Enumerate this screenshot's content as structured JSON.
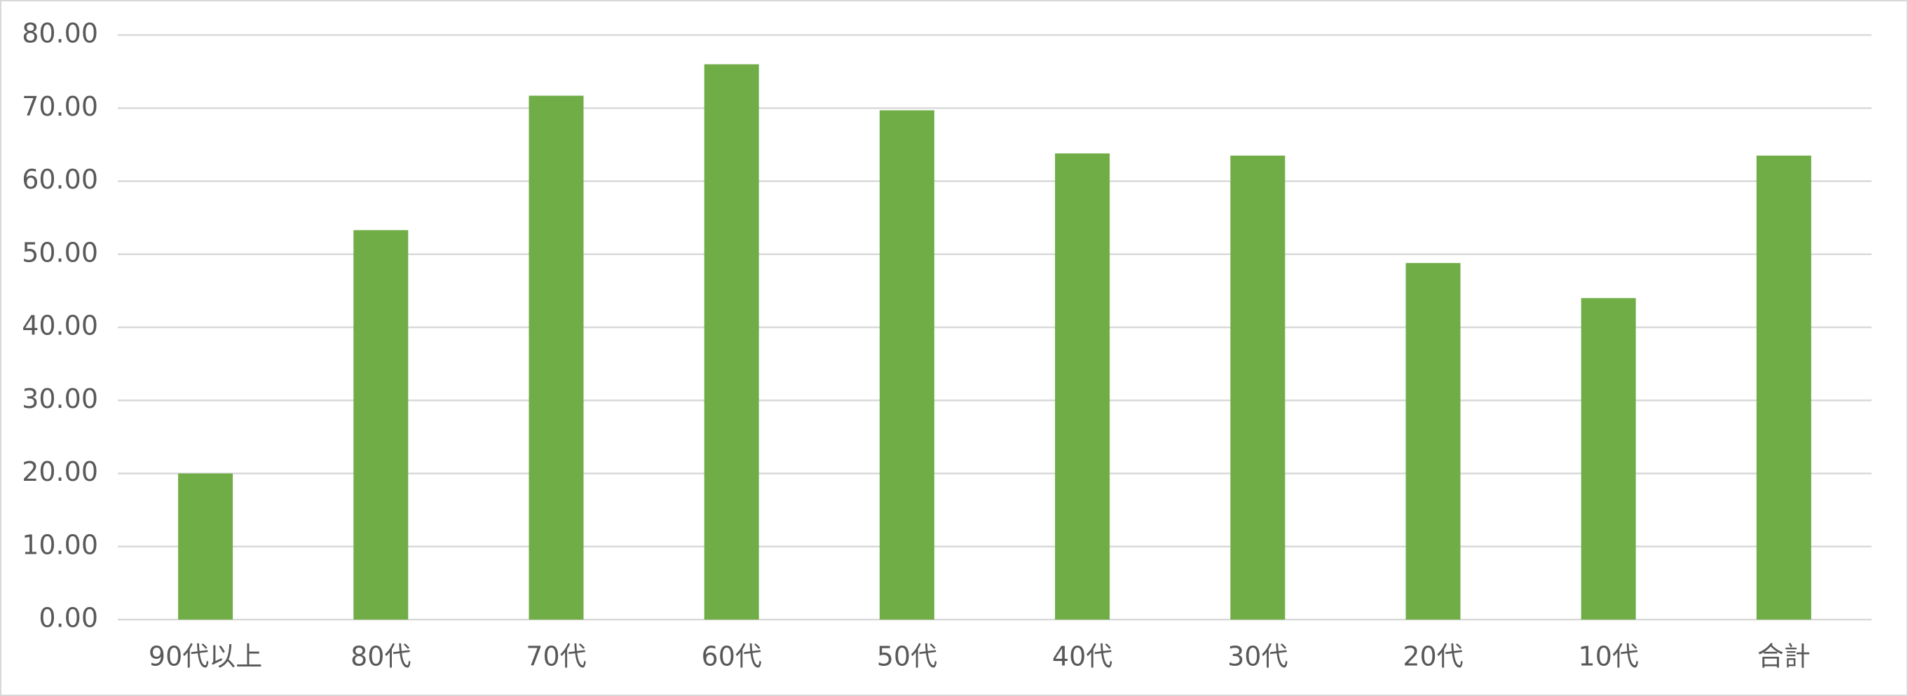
{
  "chart_data": {
    "type": "bar",
    "categories": [
      "90代以上",
      "80代",
      "70代",
      "60代",
      "50代",
      "40代",
      "30代",
      "20代",
      "10代",
      "合計"
    ],
    "values": [
      20.0,
      53.3,
      71.7,
      76.0,
      69.7,
      63.8,
      63.5,
      48.8,
      44.0,
      63.5
    ],
    "color": "#70ad47",
    "ylim": [
      0,
      80
    ],
    "yticks": [
      {
        "value": 0,
        "label": "0.00"
      },
      {
        "value": 10,
        "label": "10.00"
      },
      {
        "value": 20,
        "label": "20.00"
      },
      {
        "value": 30,
        "label": "30.00"
      },
      {
        "value": 40,
        "label": "40.00"
      },
      {
        "value": 50,
        "label": "50.00"
      },
      {
        "value": 60,
        "label": "60.00"
      },
      {
        "value": 70,
        "label": "70.00"
      },
      {
        "value": 80,
        "label": "80.00"
      }
    ],
    "grid": true
  }
}
